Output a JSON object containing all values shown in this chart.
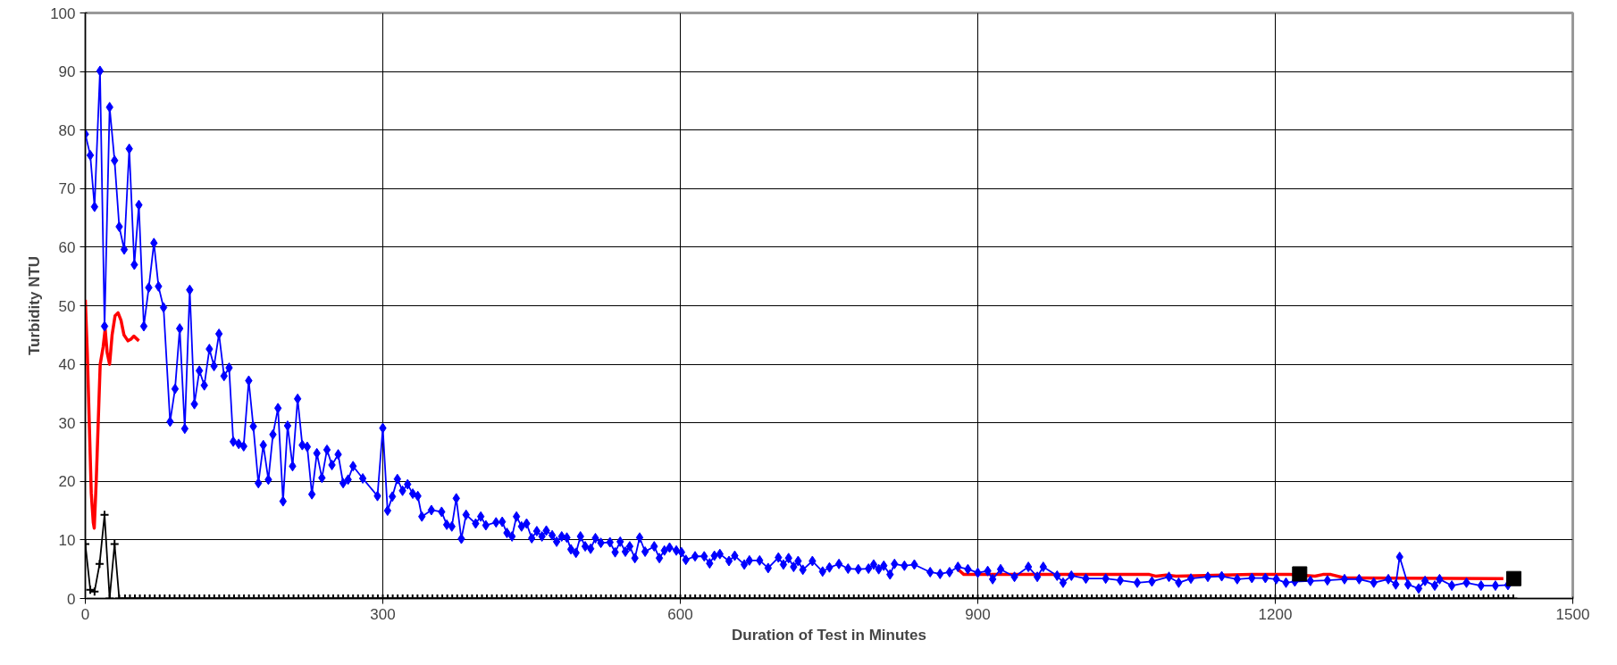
{
  "chart_data": {
    "type": "line",
    "xlabel": "Duration of Test in Minutes",
    "ylabel": "Turbidity NTU",
    "xlim": [
      0,
      1500
    ],
    "xticks": [
      0,
      300,
      600,
      900,
      1200,
      1500
    ],
    "ylim": [
      0,
      100
    ],
    "yticks": [
      0,
      10,
      20,
      30,
      40,
      50,
      60,
      70,
      80,
      90,
      100
    ],
    "grid": true,
    "series": [
      {
        "color": "#ff0000",
        "marker": "none",
        "line_style": "solid",
        "x": [
          0,
          2,
          4,
          6,
          8,
          9,
          11,
          13,
          15,
          18,
          20,
          22,
          24.5,
          27,
          30,
          33,
          36,
          39,
          43,
          46,
          49,
          54,
          470,
          880,
          886,
          1073,
          1080,
          1090,
          1100,
          1176,
          1215,
          1240,
          1248,
          1256,
          1270,
          1430
        ],
        "values": [
          51,
          42,
          30,
          18,
          13,
          12,
          20,
          30,
          40,
          43,
          46,
          42,
          40,
          45,
          48.3,
          48.8,
          47.5,
          45,
          44,
          44.3,
          44.8,
          44,
          null,
          5,
          4.1,
          4.1,
          3.8,
          4,
          3.8,
          4.1,
          4.1,
          3.8,
          4.1,
          4.1,
          3.5,
          3.4
        ]
      },
      {
        "color": "#000000",
        "marker": "cross",
        "line_style": "solid",
        "x": [
          0,
          5,
          9.3,
          14.4,
          19.4,
          24.5,
          29.5,
          34.2,
          40,
          45,
          50,
          55,
          60,
          65,
          70,
          75,
          80,
          85,
          90,
          95,
          100,
          105,
          110,
          115,
          120,
          125,
          130,
          135,
          140,
          145,
          150,
          155,
          160,
          165,
          170,
          175,
          180,
          185,
          190,
          195,
          200,
          205,
          210,
          215,
          220,
          225,
          230,
          235,
          240,
          245,
          250,
          255,
          260,
          265,
          270,
          275,
          280,
          285,
          290,
          295,
          300,
          305,
          310,
          315,
          320,
          325,
          330,
          335,
          340,
          345,
          350,
          355,
          360,
          365,
          370,
          375,
          380,
          385,
          390,
          395,
          400,
          405,
          410,
          415,
          420,
          425,
          430,
          435,
          440,
          445,
          450,
          455,
          460,
          465,
          470,
          475,
          480,
          485,
          490,
          495,
          500,
          505,
          510,
          515,
          520,
          525,
          530,
          535,
          540,
          545,
          550,
          555,
          560,
          565,
          570,
          575,
          580,
          585,
          590,
          595,
          600,
          605,
          610,
          615,
          620,
          625,
          630,
          635,
          640,
          645,
          650,
          655,
          660,
          665,
          670,
          675,
          680,
          685,
          690,
          695,
          700,
          705,
          710,
          715,
          720,
          725,
          730,
          735,
          740,
          745,
          750,
          755,
          760,
          765,
          770,
          775,
          780,
          785,
          790,
          795,
          800,
          805,
          810,
          815,
          820,
          825,
          830,
          835,
          840,
          845,
          850,
          855,
          860,
          865,
          870,
          875,
          880,
          885,
          890,
          895,
          900,
          905,
          910,
          915,
          920,
          925,
          930,
          935,
          940,
          945,
          950,
          955,
          960,
          965,
          970,
          975,
          980,
          985,
          990,
          995,
          1000,
          1005,
          1010,
          1015,
          1020,
          1025,
          1030,
          1035,
          1040,
          1045,
          1050,
          1055,
          1060,
          1065,
          1070,
          1075,
          1080,
          1085,
          1090,
          1095,
          1100,
          1105,
          1110,
          1115,
          1120,
          1125,
          1130,
          1135,
          1140,
          1145,
          1150,
          1155,
          1160,
          1165,
          1170,
          1175,
          1180,
          1185,
          1190,
          1195,
          1200,
          1205,
          1210,
          1215,
          1220,
          1225,
          1230,
          1235,
          1240,
          1245,
          1250,
          1255,
          1260,
          1265,
          1270,
          1275,
          1280,
          1285,
          1290,
          1295,
          1300,
          1305,
          1310,
          1315,
          1320,
          1325,
          1330,
          1335,
          1340,
          1345,
          1350,
          1355,
          1360,
          1365,
          1370,
          1375,
          1380,
          1385,
          1390,
          1395,
          1400,
          1405,
          1410,
          1415,
          1420,
          1425,
          1430,
          1435,
          1440
        ],
        "values": [
          9.3,
          1.5,
          1.2,
          5.9,
          14.3,
          0,
          9.3,
          0,
          0,
          0,
          0,
          0,
          0,
          0,
          0,
          0,
          0,
          0,
          0,
          0,
          0,
          0,
          0,
          0,
          0,
          0,
          0,
          0,
          0,
          0,
          0,
          0,
          0,
          0,
          0,
          0,
          0,
          0,
          0,
          0,
          0,
          0,
          0,
          0,
          0,
          0,
          0,
          0,
          0,
          0,
          0,
          0,
          0,
          0,
          0,
          0,
          0,
          0,
          0,
          0,
          0,
          0,
          0,
          0,
          0,
          0,
          0,
          0,
          0,
          0,
          0,
          0,
          0,
          0,
          0,
          0,
          0,
          0,
          0,
          0,
          0,
          0,
          0,
          0,
          0,
          0,
          0,
          0,
          0,
          0,
          0,
          0,
          0,
          0,
          0,
          0,
          0,
          0,
          0,
          0,
          0,
          0,
          0,
          0,
          0,
          0,
          0,
          0,
          0,
          0,
          0,
          0,
          0,
          0,
          0,
          0,
          0,
          0,
          0,
          0,
          0,
          0,
          0,
          0,
          0,
          0,
          0,
          0,
          0,
          0,
          0,
          0,
          0,
          0,
          0,
          0,
          0,
          0,
          0,
          0,
          0,
          0,
          0,
          0,
          0,
          0,
          0,
          0,
          0,
          0,
          0,
          0,
          0,
          0,
          0,
          0,
          0,
          0,
          0,
          0,
          0,
          0,
          0,
          0,
          0,
          0,
          0,
          0,
          0,
          0,
          0,
          0,
          0,
          0,
          0,
          0,
          0,
          0,
          0,
          0,
          0,
          0,
          0,
          0,
          0,
          0,
          0,
          0,
          0,
          0,
          0,
          0,
          0,
          0,
          0,
          0,
          0,
          0,
          0,
          0,
          0,
          0,
          0,
          0,
          0,
          0,
          0,
          0,
          0,
          0,
          0,
          0,
          0,
          0,
          0,
          0,
          0,
          0,
          0,
          0,
          0,
          0,
          0,
          0,
          0,
          0,
          0,
          0,
          0,
          0,
          0,
          0,
          0,
          0,
          0,
          0,
          0,
          0,
          0,
          0,
          0,
          0,
          0,
          0,
          0,
          0,
          0,
          0,
          0,
          0,
          0,
          0,
          0,
          0,
          0,
          0,
          0,
          0,
          0,
          0,
          0,
          0,
          0,
          0,
          0,
          0,
          0,
          0,
          0,
          0,
          0,
          0,
          0,
          0,
          0,
          0,
          0,
          0,
          0,
          0,
          0,
          0,
          0,
          0,
          0,
          0,
          0,
          0,
          0
        ]
      },
      {
        "color": "#0000ff",
        "marker": "diamond",
        "line_style": "solid",
        "x": [
          0,
          5,
          9.3,
          14.8,
          19.4,
          24.5,
          29.5,
          34.2,
          39.2,
          44.3,
          49.4,
          54,
          59,
          64,
          69.2,
          73.8,
          78.9,
          85.5,
          90.5,
          95.2,
          100.3,
          105.3,
          110,
          115,
          120,
          125.1,
          129.8,
          134.8,
          139.9,
          145,
          149.2,
          154.7,
          159.7,
          164.8,
          169.4,
          174.5,
          179.5,
          184.6,
          189.2,
          194.3,
          199.4,
          204,
          209,
          214.1,
          218.8,
          223.8,
          228.5,
          233.5,
          238.6,
          243.7,
          248.7,
          255,
          260,
          265,
          270,
          279.8,
          294.6,
          300,
          304.8,
          309.6,
          314.7,
          319.9,
          325,
          330.2,
          335.3,
          339.4,
          349,
          359.3,
          364.5,
          369.6,
          374.1,
          379.2,
          384,
          393.6,
          398.8,
          403.9,
          414.2,
          420.4,
          425.2,
          430.3,
          434.8,
          439.9,
          445,
          450.2,
          455.3,
          460.5,
          464.9,
          470.8,
          475.3,
          480.4,
          485.6,
          489.7,
          494.8,
          499.3,
          504.1,
          509.6,
          514.4,
          519.9,
          529.1,
          534.3,
          539.4,
          544.6,
          549,
          554.2,
          559,
          564.5,
          573.7,
          578.9,
          584,
          589.2,
          596,
          601.2,
          605.6,
          614.9,
          624.1,
          629.6,
          634.4,
          639.9,
          649.1,
          654.9,
          664.5,
          669.7,
          680,
          688.6,
          698.9,
          704,
          709.2,
          714.3,
          718.8,
          723.6,
          733.2,
          743.5,
          750.4,
          760,
          769.2,
          779.5,
          789.8,
          795,
          800.1,
          805.2,
          811.5,
          816,
          826,
          836,
          852,
          862,
          871.5,
          880,
          890,
          900,
          910,
          915,
          923,
          937,
          951,
          960,
          966,
          980,
          986,
          994.4,
          1009,
          1029,
          1043.6,
          1060.8,
          1075.6,
          1092.8,
          1102.6,
          1114.9,
          1132,
          1146,
          1161.6,
          1176.4,
          1190,
          1201,
          1210.8,
          1219.7,
          1235.4,
          1252.6,
          1269.8,
          1284.6,
          1299.3,
          1314,
          1321.5,
          1325.4,
          1333.8,
          1344.6,
          1351,
          1360.8,
          1365.7,
          1378,
          1392.8,
          1407.5,
          1422,
          1434.6
        ],
        "values": [
          79.3,
          75.7,
          66.9,
          90.1,
          46.5,
          83.9,
          74.8,
          63.5,
          59.6,
          76.8,
          57,
          67.2,
          46.5,
          53.1,
          60.7,
          53.3,
          49.7,
          30.2,
          35.8,
          46.1,
          29,
          52.7,
          33.2,
          38.9,
          36.4,
          42.6,
          39.7,
          45.2,
          38,
          39.4,
          26.8,
          26.4,
          26,
          37.2,
          29.4,
          19.7,
          26.2,
          20.3,
          28,
          32.5,
          16.6,
          29.5,
          22.6,
          34.1,
          26.2,
          25.9,
          17.8,
          24.8,
          20.6,
          25.4,
          22.8,
          24.6,
          19.7,
          20.3,
          22.6,
          20.5,
          17.5,
          29.1,
          15,
          17.4,
          20.4,
          18.4,
          19.5,
          17.9,
          17.5,
          14,
          15.1,
          14.8,
          12.6,
          12.3,
          17.1,
          10.2,
          14.3,
          12.8,
          14,
          12.5,
          13,
          13.1,
          11.2,
          10.6,
          14,
          12.3,
          12.8,
          10.3,
          11.5,
          10.6,
          11.6,
          10.8,
          9.7,
          10.6,
          10.4,
          8.4,
          7.8,
          10.6,
          8.9,
          8.5,
          10.3,
          9.5,
          9.6,
          7.9,
          9.7,
          8,
          8.9,
          6.9,
          10.4,
          8,
          8.9,
          6.9,
          8.2,
          8.7,
          8.2,
          7.9,
          6.6,
          7.2,
          7.2,
          6,
          7.3,
          7.6,
          6.4,
          7.3,
          5.8,
          6.5,
          6.5,
          5.2,
          7,
          5.8,
          6.9,
          5.4,
          6.4,
          4.9,
          6.4,
          4.6,
          5.3,
          5.9,
          5.1,
          5,
          5.1,
          5.8,
          5,
          5.6,
          4.1,
          5.9,
          5.6,
          5.8,
          4.5,
          4.2,
          4.5,
          5.4,
          5,
          4.4,
          4.7,
          3.3,
          5,
          3.7,
          5.4,
          3.7,
          5.4,
          3.9,
          2.7,
          3.9,
          3.4,
          3.4,
          3.1,
          2.7,
          2.9,
          3.7,
          2.7,
          3.4,
          3.7,
          3.8,
          3.3,
          3.5,
          3.5,
          3.3,
          2.7,
          2.9,
          3,
          3.1,
          3.3,
          3.3,
          2.7,
          3.3,
          2.4,
          7.1,
          2.4,
          1.7,
          3,
          2.2,
          3.3,
          2.2,
          2.7,
          2.2,
          2.2,
          2.3
        ]
      },
      {
        "type": "scatter",
        "color": "#000000",
        "marker": "square",
        "x": [
          1224.6,
          1440.5
        ],
        "values": [
          4.2,
          3.4
        ]
      }
    ]
  }
}
